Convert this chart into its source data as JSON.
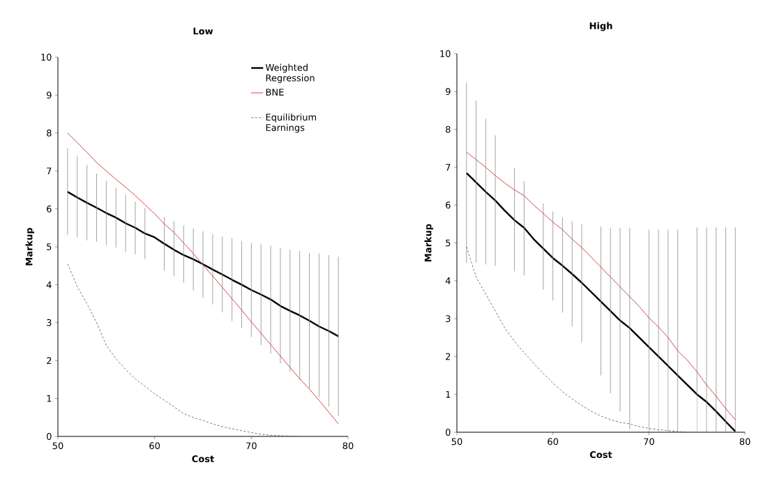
{
  "chart_data": [
    {
      "type": "line",
      "title": "Low",
      "xlabel": "Cost",
      "ylabel": "Markup",
      "xlim": [
        50,
        80
      ],
      "ylim": [
        0,
        10
      ],
      "xticks": [
        50,
        60,
        70,
        80
      ],
      "yticks": [
        0,
        1,
        2,
        3,
        4,
        5,
        6,
        7,
        8,
        9,
        10
      ],
      "legend": "top right",
      "grid": false,
      "x": [
        51,
        52,
        53,
        54,
        55,
        56,
        57,
        58,
        59,
        60,
        61,
        62,
        63,
        64,
        65,
        66,
        67,
        68,
        69,
        70,
        71,
        72,
        73,
        74,
        75,
        76,
        77,
        78,
        79
      ],
      "series": [
        {
          "name": "Weighted Regression",
          "color": "#000000",
          "line_style": "solid",
          "values": [
            6.45,
            6.3,
            6.16,
            6.03,
            5.89,
            5.77,
            5.62,
            5.5,
            5.35,
            5.25,
            5.08,
            4.92,
            4.78,
            4.67,
            4.54,
            4.4,
            4.27,
            4.13,
            4.0,
            3.86,
            3.74,
            3.61,
            3.44,
            3.31,
            3.19,
            3.05,
            2.9,
            2.78,
            2.64
          ],
          "errors": [
            [
              5.32,
              7.6
            ],
            [
              5.25,
              7.38
            ],
            [
              5.17,
              7.16
            ],
            [
              5.13,
              6.93
            ],
            [
              5.04,
              6.74
            ],
            [
              4.98,
              6.56
            ],
            [
              4.86,
              6.38
            ],
            [
              4.8,
              6.19
            ],
            [
              4.68,
              6.02
            ],
            null,
            [
              4.37,
              5.78
            ],
            [
              4.22,
              5.67
            ],
            [
              4.05,
              5.56
            ],
            [
              3.85,
              5.48
            ],
            [
              3.66,
              5.41
            ],
            [
              3.48,
              5.33
            ],
            [
              3.27,
              5.27
            ],
            [
              3.04,
              5.23
            ],
            [
              2.85,
              5.15
            ],
            [
              2.62,
              5.1
            ],
            [
              2.41,
              5.07
            ],
            [
              2.19,
              5.03
            ],
            [
              1.92,
              4.96
            ],
            [
              1.7,
              4.92
            ],
            [
              1.49,
              4.89
            ],
            [
              1.27,
              4.84
            ],
            [
              1.03,
              4.82
            ],
            [
              0.78,
              4.78
            ],
            [
              0.54,
              4.74
            ]
          ]
        },
        {
          "name": "BNE",
          "color": "#c8373a",
          "line_style": "solid",
          "values": [
            8.0,
            7.75,
            7.49,
            7.22,
            7.0,
            6.78,
            6.57,
            6.35,
            6.11,
            5.87,
            5.6,
            5.38,
            5.1,
            4.82,
            4.52,
            4.23,
            3.93,
            3.63,
            3.33,
            3.02,
            2.72,
            2.42,
            2.12,
            1.82,
            1.52,
            1.25,
            0.95,
            0.64,
            0.33
          ]
        },
        {
          "name": "Equilibrium Earnings",
          "color": "#555555",
          "line_style": "dashed",
          "values": [
            4.55,
            3.95,
            3.5,
            3.0,
            2.4,
            2.05,
            1.76,
            1.52,
            1.32,
            1.12,
            0.95,
            0.78,
            0.6,
            0.5,
            0.42,
            0.33,
            0.26,
            0.2,
            0.15,
            0.1,
            0.06,
            0.03,
            0.02,
            0.01,
            0,
            null,
            null,
            null,
            null
          ]
        }
      ]
    },
    {
      "type": "line",
      "title": "High",
      "xlabel": "Cost",
      "ylabel": "Markup",
      "xlim": [
        50,
        80
      ],
      "ylim": [
        0,
        10
      ],
      "xticks": [
        50,
        60,
        70,
        80
      ],
      "yticks": [
        0,
        1,
        2,
        3,
        4,
        5,
        6,
        7,
        8,
        9,
        10
      ],
      "legend": false,
      "grid": false,
      "x": [
        51,
        52,
        53,
        54,
        55,
        56,
        57,
        58,
        59,
        60,
        61,
        62,
        63,
        64,
        65,
        66,
        67,
        68,
        69,
        70,
        71,
        72,
        73,
        74,
        75,
        76,
        77,
        78,
        79
      ],
      "series": [
        {
          "color": "#000000",
          "line_style": "solid",
          "values": [
            6.85,
            6.6,
            6.35,
            6.12,
            5.85,
            5.6,
            5.4,
            5.1,
            4.85,
            4.6,
            4.4,
            4.18,
            3.95,
            3.7,
            3.45,
            3.2,
            2.95,
            2.75,
            2.5,
            2.25,
            2.0,
            1.75,
            1.5,
            1.25,
            1.0,
            0.8,
            0.55,
            0.28,
            0.02
          ],
          "errors": [
            [
              4.47,
              9.23
            ],
            [
              4.48,
              8.76
            ],
            [
              4.43,
              8.28
            ],
            [
              4.39,
              7.84
            ],
            null,
            [
              4.25,
              6.99
            ],
            [
              4.14,
              6.63
            ],
            null,
            [
              3.77,
              6.04
            ],
            [
              3.48,
              5.83
            ],
            [
              3.16,
              5.67
            ],
            [
              2.79,
              5.57
            ],
            [
              2.38,
              5.49
            ],
            null,
            [
              1.5,
              5.43
            ],
            [
              1.03,
              5.4
            ],
            [
              0.55,
              5.4
            ],
            [
              0.09,
              5.4
            ],
            null,
            [
              0,
              5.35
            ],
            [
              0,
              5.35
            ],
            [
              0,
              5.35
            ],
            [
              0,
              5.35
            ],
            null,
            [
              0,
              5.41
            ],
            [
              0,
              5.41
            ],
            [
              0,
              5.41
            ],
            [
              0,
              5.41
            ],
            [
              0,
              5.41
            ]
          ]
        },
        {
          "color": "#c8373a",
          "line_style": "solid",
          "values": [
            7.4,
            7.2,
            7.0,
            6.78,
            6.58,
            6.4,
            6.25,
            6.0,
            5.78,
            5.55,
            5.35,
            5.1,
            4.88,
            4.62,
            4.36,
            4.1,
            3.84,
            3.58,
            3.32,
            3.02,
            2.78,
            2.5,
            2.15,
            1.9,
            1.6,
            1.25,
            0.95,
            0.62,
            0.33
          ]
        },
        {
          "color": "#555555",
          "line_style": "dashed",
          "values": [
            4.9,
            4.1,
            3.65,
            3.2,
            2.75,
            2.4,
            2.1,
            1.82,
            1.55,
            1.3,
            1.07,
            0.88,
            0.71,
            0.55,
            0.43,
            0.33,
            0.26,
            0.22,
            0.15,
            0.1,
            0.07,
            0.04,
            0.02,
            0,
            null,
            null,
            null,
            null,
            null
          ]
        }
      ]
    }
  ]
}
